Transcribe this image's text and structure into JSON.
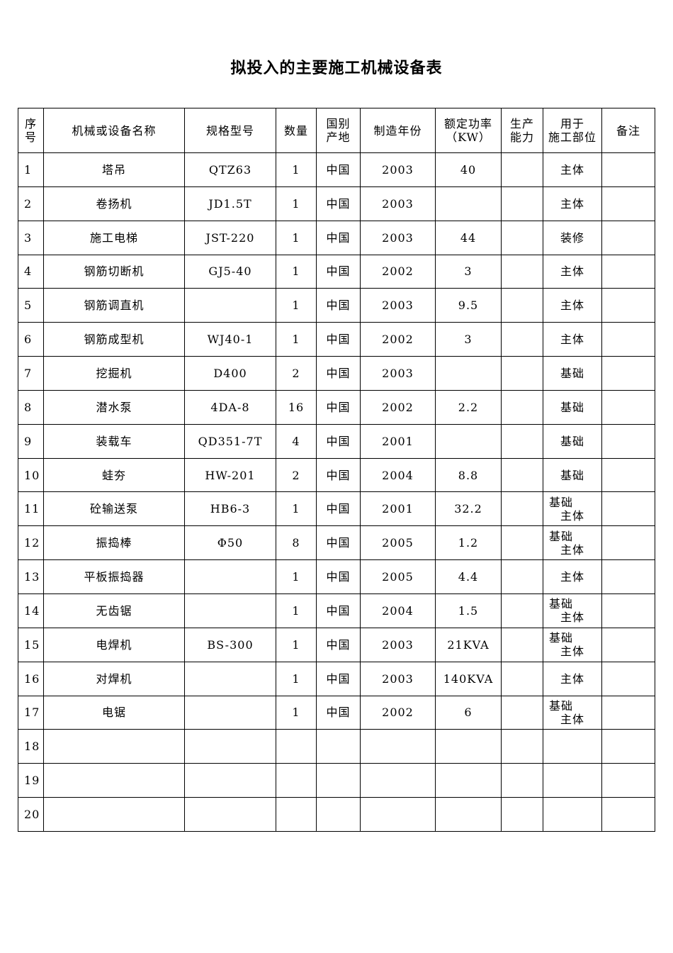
{
  "title": "拟投入的主要施工机械设备表",
  "headers": [
    "序\n号",
    "机械或设备名称",
    "规格型号",
    "数量",
    "国别\n产地",
    "制造年份",
    "额定功率\n（KW）",
    "生产\n能力",
    "用于\n施工部位",
    "备注"
  ],
  "rows": [
    [
      "1",
      "塔吊",
      "QTZ63",
      "1",
      "中国",
      "2003",
      "40",
      "",
      "主体",
      ""
    ],
    [
      "2",
      "卷扬机",
      "JD1.5T",
      "1",
      "中国",
      "2003",
      "",
      "",
      "主体",
      ""
    ],
    [
      "3",
      "施工电梯",
      "JST-220",
      "1",
      "中国",
      "2003",
      "44",
      "",
      "装修",
      ""
    ],
    [
      "4",
      "钢筋切断机",
      "GJ5-40",
      "1",
      "中国",
      "2002",
      "3",
      "",
      "主体",
      ""
    ],
    [
      "5",
      "钢筋调直机",
      "",
      "1",
      "中国",
      "2003",
      "9.5",
      "",
      "主体",
      ""
    ],
    [
      "6",
      "钢筋成型机",
      "WJ40-1",
      "1",
      "中国",
      "2002",
      "3",
      "",
      "主体",
      ""
    ],
    [
      "7",
      "挖掘机",
      "D400",
      "2",
      "中国",
      "2003",
      "",
      "",
      "基础",
      ""
    ],
    [
      "8",
      "潜水泵",
      "4DA-8",
      "16",
      "中国",
      "2002",
      "2.2",
      "",
      "基础",
      ""
    ],
    [
      "9",
      "装载车",
      "QD351-7T",
      "4",
      "中国",
      "2001",
      "",
      "",
      "基础",
      ""
    ],
    [
      "10",
      "蛙夯",
      "HW-201",
      "2",
      "中国",
      "2004",
      "8.8",
      "",
      "基础",
      ""
    ],
    [
      "11",
      "砼输送泵",
      "HB6-3",
      "1",
      "中国",
      "2001",
      "32.2",
      "",
      "基础\n主体",
      ""
    ],
    [
      "12",
      "振捣棒",
      "Φ50",
      "8",
      "中国",
      "2005",
      "1.2",
      "",
      "基础\n主体",
      ""
    ],
    [
      "13",
      "平板振捣器",
      "",
      "1",
      "中国",
      "2005",
      "4.4",
      "",
      "主体",
      ""
    ],
    [
      "14",
      "无齿锯",
      "",
      "1",
      "中国",
      "2004",
      "1.5",
      "",
      "基础\n主体",
      ""
    ],
    [
      "15",
      "电焊机",
      "BS-300",
      "1",
      "中国",
      "2003",
      "21KVA",
      "",
      "基础\n主体",
      ""
    ],
    [
      "16",
      "对焊机",
      "",
      "1",
      "中国",
      "2003",
      "140KVA",
      "",
      "主体",
      ""
    ],
    [
      "17",
      "电锯",
      "",
      "1",
      "中国",
      "2002",
      "6",
      "",
      "基础\n主体",
      ""
    ],
    [
      "18",
      "",
      "",
      "",
      "",
      "",
      "",
      "",
      "",
      ""
    ],
    [
      "19",
      "",
      "",
      "",
      "",
      "",
      "",
      "",
      "",
      ""
    ],
    [
      "20",
      "",
      "",
      "",
      "",
      "",
      "",
      "",
      "",
      ""
    ]
  ]
}
